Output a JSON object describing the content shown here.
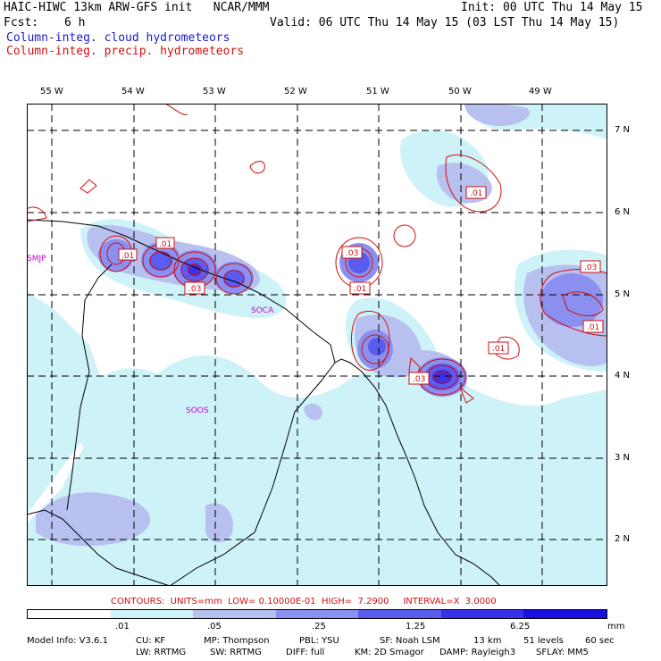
{
  "header": {
    "title": "HAIC-HIWC 13km ARW-GFS init   NCAR/MMM",
    "init": "Init: 00 UTC Thu 14 May 15",
    "fcst_label": "Fcst:",
    "fcst_value": "6 h",
    "valid": "Valid: 06 UTC Thu 14 May 15 (03 LST Thu 14 May 15)",
    "legend_cloud": "Column-integ. cloud hydrometeors",
    "legend_precip": "Column-integ. precip. hydrometeors"
  },
  "axes": {
    "lon_labels": [
      "55 W",
      "54 W",
      "53 W",
      "52 W",
      "51 W",
      "50 W",
      "49 W"
    ],
    "lat_labels": [
      "7 N",
      "6 N",
      "5 N",
      "4 N",
      "3 N",
      "2 N"
    ]
  },
  "stations": [
    "SMJP",
    "SOCA",
    "SOOS"
  ],
  "station_icao_near_coast": "SMJP",
  "contour_labels": [
    ".01",
    ".01",
    ".03",
    ".03",
    ".01",
    ".01",
    ".01",
    ".03",
    ".01",
    ".03",
    ".01",
    ".01"
  ],
  "contour_info": "CONTOURS:  UNITS=mm  LOW= 0.10000E-01  HIGH=  7.2900     INTERVAL=X  3.0000",
  "colorbar": {
    "ticks": [
      ".01",
      ".05",
      ".25",
      "1.25",
      "6.25"
    ],
    "units": "mm",
    "colors": [
      "#ffffff",
      "#cdf2f8",
      "#b8c0f0",
      "#8a8ff0",
      "#5a5cf0",
      "#3a30ea",
      "#1a10e0"
    ]
  },
  "footer": {
    "line1": [
      "Model Info: V3.6.1",
      "CU: KF",
      "MP: Thompson",
      "PBL: YSU",
      "SF: Noah LSM",
      "13 km",
      "51 levels",
      "60 sec"
    ],
    "line2": [
      "LW: RRTMG",
      "SW: RRTMG",
      "DIFF: full",
      "KM: 2D Smagor",
      "DAMP: Rayleigh3",
      "SFLAY: MM5"
    ]
  }
}
